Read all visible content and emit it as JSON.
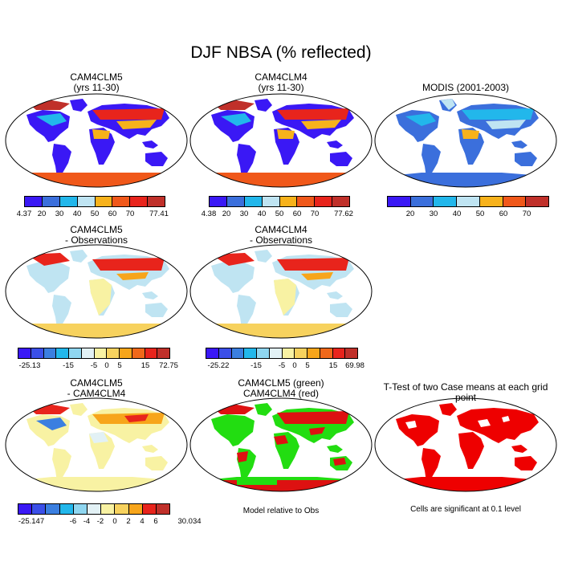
{
  "title": "DJF NBSA (% reflected)",
  "colors": {
    "absolute": [
      "#3a18f5",
      "#3b6fdc",
      "#22b7eb",
      "#bfe4f2",
      "#f7b21b",
      "#f0581a",
      "#e8241c",
      "#c0302a"
    ],
    "diff": [
      "#3a18f5",
      "#3b4fe8",
      "#3b7fe0",
      "#22b7eb",
      "#8fd6f0",
      "#e2f1f5",
      "#f8f2a3",
      "#f7d25e",
      "#f7a51b",
      "#f0681a",
      "#e8241c",
      "#c0302a"
    ]
  },
  "panels": [
    {
      "title": "CAM4CLM5\n(yrs 11-30)",
      "ticks": [
        "4.37",
        "20",
        "30",
        "40",
        "50",
        "60",
        "70",
        "77.41"
      ]
    },
    {
      "title": "CAM4CLM4\n(yrs 11-30)",
      "ticks": [
        "4.38",
        "20",
        "30",
        "40",
        "50",
        "60",
        "70",
        "77.62"
      ]
    },
    {
      "title": "MODIS (2001-2003)",
      "ticks": [
        "20",
        "30",
        "40",
        "50",
        "60",
        "70"
      ]
    },
    {
      "title": "CAM4CLM5\n- Observations",
      "ticks": [
        "-25.13",
        "-15",
        "-5",
        "0",
        "5",
        "15",
        "72.75"
      ]
    },
    {
      "title": "CAM4CLM4\n- Observations",
      "ticks": [
        "-25.22",
        "-15",
        "-5",
        "0",
        "5",
        "15",
        "69.98"
      ]
    },
    {
      "title": "CAM4CLM5\n- CAM4CLM4",
      "ticks": [
        "-25.147",
        "-6",
        "-4",
        "-2",
        "0",
        "2",
        "4",
        "6",
        "30.034"
      ]
    },
    {
      "title": "CAM4CLM5 (green)\nCAM4CLM4 (red)",
      "note": "Model relative to Obs"
    },
    {
      "title": "T-Test of two Case means at each grid point",
      "note": "Cells are significant at 0.1 level"
    }
  ]
}
